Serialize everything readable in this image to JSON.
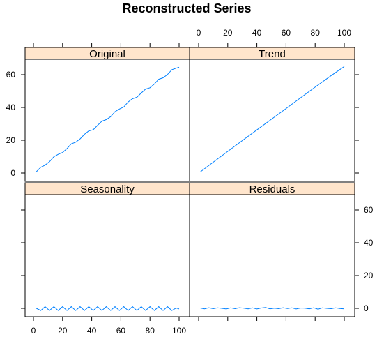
{
  "chart_data": {
    "type": "line",
    "title": "Reconstructed Series",
    "layout": "2x2 lattice",
    "xlim": [
      0,
      100
    ],
    "ylim": [
      -6,
      70
    ],
    "x_ticks": [
      0,
      20,
      40,
      60,
      80,
      100
    ],
    "y_ticks": [
      0,
      20,
      40,
      60
    ],
    "panels": [
      {
        "name": "Original",
        "x": [
          2,
          5,
          8,
          11,
          14,
          17,
          20,
          23,
          26,
          29,
          32,
          35,
          38,
          41,
          44,
          47,
          50,
          53,
          56,
          59,
          62,
          65,
          68,
          71,
          74,
          77,
          80,
          83,
          86,
          89,
          92,
          95,
          98,
          100
        ],
        "values": [
          0.8,
          3.5,
          4.8,
          6.9,
          9.9,
          11.4,
          12.5,
          14.9,
          17.8,
          18.8,
          20.8,
          23.6,
          25.7,
          26.4,
          29.1,
          31.6,
          32.6,
          34.4,
          37.4,
          39.0,
          40.3,
          43.3,
          45.3,
          46.2,
          48.8,
          51.2,
          52.0,
          54.3,
          57.2,
          58.1,
          60.1,
          63.0,
          64.0,
          64.5
        ]
      },
      {
        "name": "Trend",
        "x": [
          1,
          10,
          20,
          30,
          40,
          50,
          60,
          70,
          80,
          90,
          100
        ],
        "values": [
          0.6,
          6.6,
          13.2,
          19.8,
          26.3,
          32.8,
          39.3,
          45.9,
          52.4,
          58.8,
          65.0
        ]
      },
      {
        "name": "Seasonality",
        "x": [
          2,
          5,
          8,
          11,
          14,
          17,
          20,
          23,
          26,
          29,
          32,
          35,
          38,
          41,
          44,
          47,
          50,
          53,
          56,
          59,
          62,
          65,
          68,
          71,
          74,
          77,
          80,
          83,
          86,
          89,
          92,
          95,
          98,
          100
        ],
        "values": [
          0.0,
          -1.3,
          1.0,
          -1.3,
          1.0,
          -1.3,
          1.0,
          -1.3,
          1.0,
          -1.3,
          1.0,
          -1.3,
          1.0,
          -1.3,
          1.0,
          -1.3,
          1.0,
          -1.3,
          1.0,
          -1.3,
          1.0,
          -1.3,
          1.0,
          -1.3,
          1.0,
          -1.3,
          1.0,
          -1.3,
          1.0,
          -1.3,
          1.0,
          -1.3,
          0.2,
          -0.4
        ]
      },
      {
        "name": "Residuals",
        "x": [
          1,
          4,
          7,
          10,
          13,
          16,
          19,
          22,
          25,
          28,
          31,
          34,
          37,
          40,
          43,
          46,
          49,
          52,
          55,
          58,
          61,
          64,
          67,
          70,
          73,
          76,
          79,
          82,
          85,
          88,
          91,
          94,
          97,
          100
        ],
        "values": [
          0.2,
          -0.3,
          0.4,
          -0.2,
          0.3,
          0.0,
          -0.4,
          0.3,
          -0.2,
          0.4,
          0.1,
          -0.3,
          0.3,
          -0.4,
          0.2,
          0.5,
          -0.3,
          0.1,
          -0.2,
          0.4,
          -0.1,
          0.3,
          -0.4,
          0.2,
          0.1,
          -0.3,
          0.4,
          -0.5,
          0.3,
          0.0,
          -0.2,
          0.3,
          -0.1,
          -0.3
        ]
      }
    ],
    "colors": {
      "line": "#0080ff",
      "strip": "#ffe5cc",
      "frame": "#000000"
    }
  }
}
